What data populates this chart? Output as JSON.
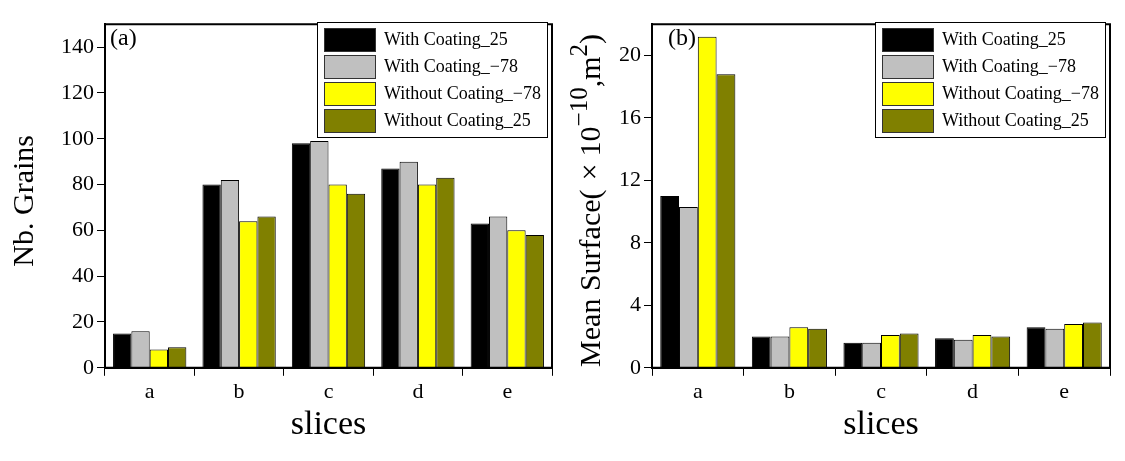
{
  "chart_data": [
    {
      "type": "bar",
      "xlabel": "slices",
      "ylabel": "Nb. Grains",
      "categories": [
        "a",
        "b",
        "c",
        "d",
        "e"
      ],
      "series": [
        {
          "name": "With Coating_25",
          "color": "#000000",
          "values": [
            15,
            80,
            98,
            87,
            63
          ]
        },
        {
          "name": "With Coating_−78",
          "color": "#c0c0c0",
          "values": [
            16,
            82,
            99,
            90,
            66
          ]
        },
        {
          "name": "Without Coating_−78",
          "color": "#ffff00",
          "values": [
            8,
            64,
            80,
            80,
            60
          ]
        },
        {
          "name": "Without Coating_25",
          "color": "#808000",
          "values": [
            9,
            66,
            76,
            83,
            58
          ]
        }
      ],
      "ylim": [
        0,
        150
      ],
      "yticks": [
        0,
        20,
        40,
        60,
        80,
        100,
        120,
        140
      ],
      "grid": false,
      "legend": "top right",
      "annotations": [
        "(a)"
      ]
    },
    {
      "type": "bar",
      "xlabel": "slices",
      "ylabel": "Mean Surface(×10$^{−10}$,m$^{2}$)",
      "categories": [
        "a",
        "b",
        "c",
        "d",
        "e"
      ],
      "series": [
        {
          "name": "With Coating_25",
          "color": "#000000",
          "values": [
            11.0,
            2.0,
            1.6,
            1.9,
            2.6
          ]
        },
        {
          "name": "With Coating_−78",
          "color": "#c0c0c0",
          "values": [
            10.3,
            2.0,
            1.6,
            1.8,
            2.5
          ]
        },
        {
          "name": "Without Coating_−78",
          "color": "#ffff00",
          "values": [
            21.2,
            2.6,
            2.1,
            2.1,
            2.8
          ]
        },
        {
          "name": "Without Coating_25",
          "color": "#808000",
          "values": [
            18.8,
            2.5,
            2.2,
            2.0,
            2.9
          ]
        }
      ],
      "ylim": [
        0,
        22
      ],
      "yticks": [
        0,
        4,
        8,
        12,
        16,
        20
      ],
      "grid": false,
      "legend": "top right",
      "annotations": [
        "(b)"
      ]
    }
  ]
}
